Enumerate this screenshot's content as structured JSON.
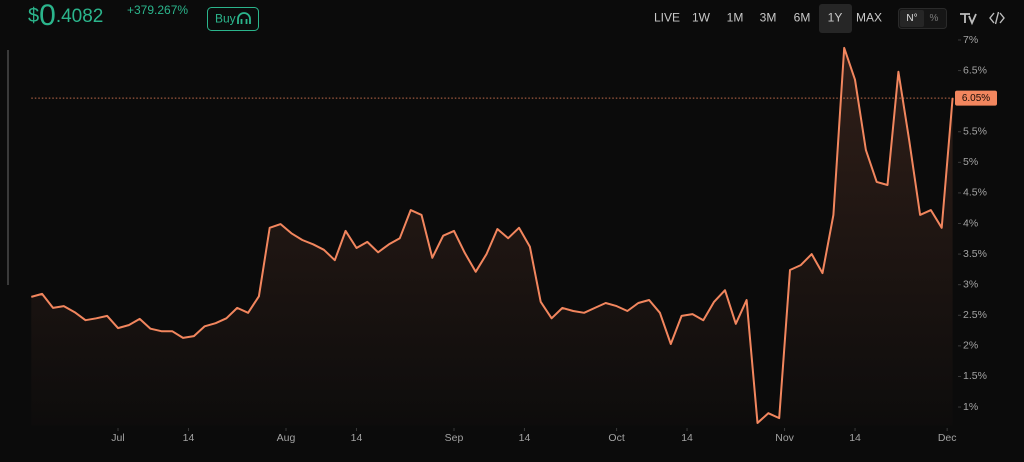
{
  "header": {
    "price_symbol": "$",
    "price_int": "0",
    "price_dec": ".4082",
    "change": "+379.267%",
    "buy": "Buy",
    "ranges": [
      "LIVE",
      "1W",
      "1M",
      "3M",
      "6M",
      "1Y",
      "MAX"
    ],
    "active_range": 5,
    "toggles": [
      "N°",
      "%"
    ]
  },
  "chart_data": {
    "type": "line",
    "color": "#f2865e",
    "x": [
      "06-15",
      "06-17",
      "06-19",
      "06-21",
      "06-23",
      "06-25",
      "06-27",
      "06-29",
      "07-01",
      "07-03",
      "07-05",
      "07-07",
      "07-09",
      "07-11",
      "07-13",
      "07-15",
      "07-17",
      "07-19",
      "07-21",
      "07-23",
      "07-25",
      "07-27",
      "07-29",
      "07-31",
      "08-02",
      "08-04",
      "08-06",
      "08-08",
      "08-10",
      "08-12",
      "08-14",
      "08-16",
      "08-18",
      "08-20",
      "08-22",
      "08-24",
      "08-26",
      "08-28",
      "08-30",
      "09-01",
      "09-03",
      "09-05",
      "09-07",
      "09-09",
      "09-11",
      "09-13",
      "09-15",
      "09-17",
      "09-19",
      "09-21",
      "09-23",
      "09-25",
      "09-27",
      "09-29",
      "10-01",
      "10-03",
      "10-05",
      "10-07",
      "10-09",
      "10-11",
      "10-13",
      "10-15",
      "10-17",
      "10-19",
      "10-21",
      "10-23",
      "10-25",
      "10-27",
      "10-29",
      "10-31",
      "11-02",
      "11-04",
      "11-06",
      "11-08",
      "11-10",
      "11-12",
      "11-14",
      "11-16",
      "11-18",
      "11-20",
      "11-22",
      "11-24",
      "11-26",
      "11-28",
      "11-30",
      "12-02"
    ],
    "values": [
      2.8,
      2.85,
      2.62,
      2.65,
      2.55,
      2.42,
      2.45,
      2.49,
      2.29,
      2.34,
      2.44,
      2.28,
      2.24,
      2.24,
      2.13,
      2.16,
      2.32,
      2.37,
      2.45,
      2.62,
      2.54,
      2.81,
      3.93,
      3.99,
      3.84,
      3.73,
      3.66,
      3.57,
      3.4,
      3.88,
      3.6,
      3.7,
      3.53,
      3.66,
      3.76,
      4.22,
      4.14,
      3.44,
      3.8,
      3.88,
      3.52,
      3.21,
      3.5,
      3.91,
      3.76,
      3.93,
      3.62,
      2.72,
      2.45,
      2.62,
      2.57,
      2.54,
      2.62,
      2.7,
      2.65,
      2.57,
      2.7,
      2.75,
      2.54,
      2.03,
      2.49,
      2.52,
      2.42,
      2.72,
      2.91,
      2.36,
      2.75,
      0.74,
      0.9,
      0.82,
      3.24,
      3.32,
      3.5,
      3.19,
      4.14,
      6.87,
      6.35,
      5.2,
      4.68,
      4.63,
      6.48,
      5.36,
      4.14,
      4.22,
      3.93,
      6.05
    ],
    "value_labels": [
      null,
      null,
      null,
      null,
      null,
      null,
      null,
      null,
      null,
      null,
      null,
      null,
      null,
      null,
      null,
      null,
      null,
      null,
      null,
      null,
      null,
      null,
      null,
      null,
      null,
      null,
      null,
      null,
      null,
      null,
      null,
      null,
      null,
      null,
      null,
      null,
      null,
      null,
      null,
      null,
      null,
      null,
      null,
      null,
      null,
      null,
      null,
      null,
      null,
      null,
      null,
      null,
      null,
      null,
      null,
      null,
      null,
      null,
      null,
      null,
      null,
      null,
      null,
      null,
      null,
      null,
      null,
      null,
      null,
      null,
      null,
      null,
      null,
      null,
      null,
      null,
      null,
      null,
      null,
      null,
      null,
      null,
      null,
      null,
      null,
      "6.05%"
    ],
    "xlim": [
      "06-15",
      "12-03"
    ],
    "xticks": [
      {
        "value": "07-01",
        "label": "Jul"
      },
      {
        "value": "07-14",
        "label": "14"
      },
      {
        "value": "08-01",
        "label": "Aug"
      },
      {
        "value": "08-14",
        "label": "14"
      },
      {
        "value": "09-01",
        "label": "Sep"
      },
      {
        "value": "09-14",
        "label": "14"
      },
      {
        "value": "10-01",
        "label": "Oct"
      },
      {
        "value": "10-14",
        "label": "14"
      },
      {
        "value": "11-01",
        "label": "Nov"
      },
      {
        "value": "11-14",
        "label": "14"
      },
      {
        "value": "12-01",
        "label": "Dec"
      }
    ],
    "ylim": [
      0.7,
      7.15
    ],
    "yticks": [
      {
        "value": 1,
        "label": "1%"
      },
      {
        "value": 1.5,
        "label": "1.5%"
      },
      {
        "value": 2,
        "label": "2%"
      },
      {
        "value": 2.5,
        "label": "2.5%"
      },
      {
        "value": 3,
        "label": "3%"
      },
      {
        "value": 3.5,
        "label": "3.5%"
      },
      {
        "value": 4,
        "label": "4%"
      },
      {
        "value": 4.5,
        "label": "4.5%"
      },
      {
        "value": 5,
        "label": "5%"
      },
      {
        "value": 5.5,
        "label": "5.5%"
      },
      {
        "value": 6,
        "label": "6%"
      },
      {
        "value": 6.5,
        "label": "6.5%"
      },
      {
        "value": 7,
        "label": "7%"
      }
    ]
  }
}
